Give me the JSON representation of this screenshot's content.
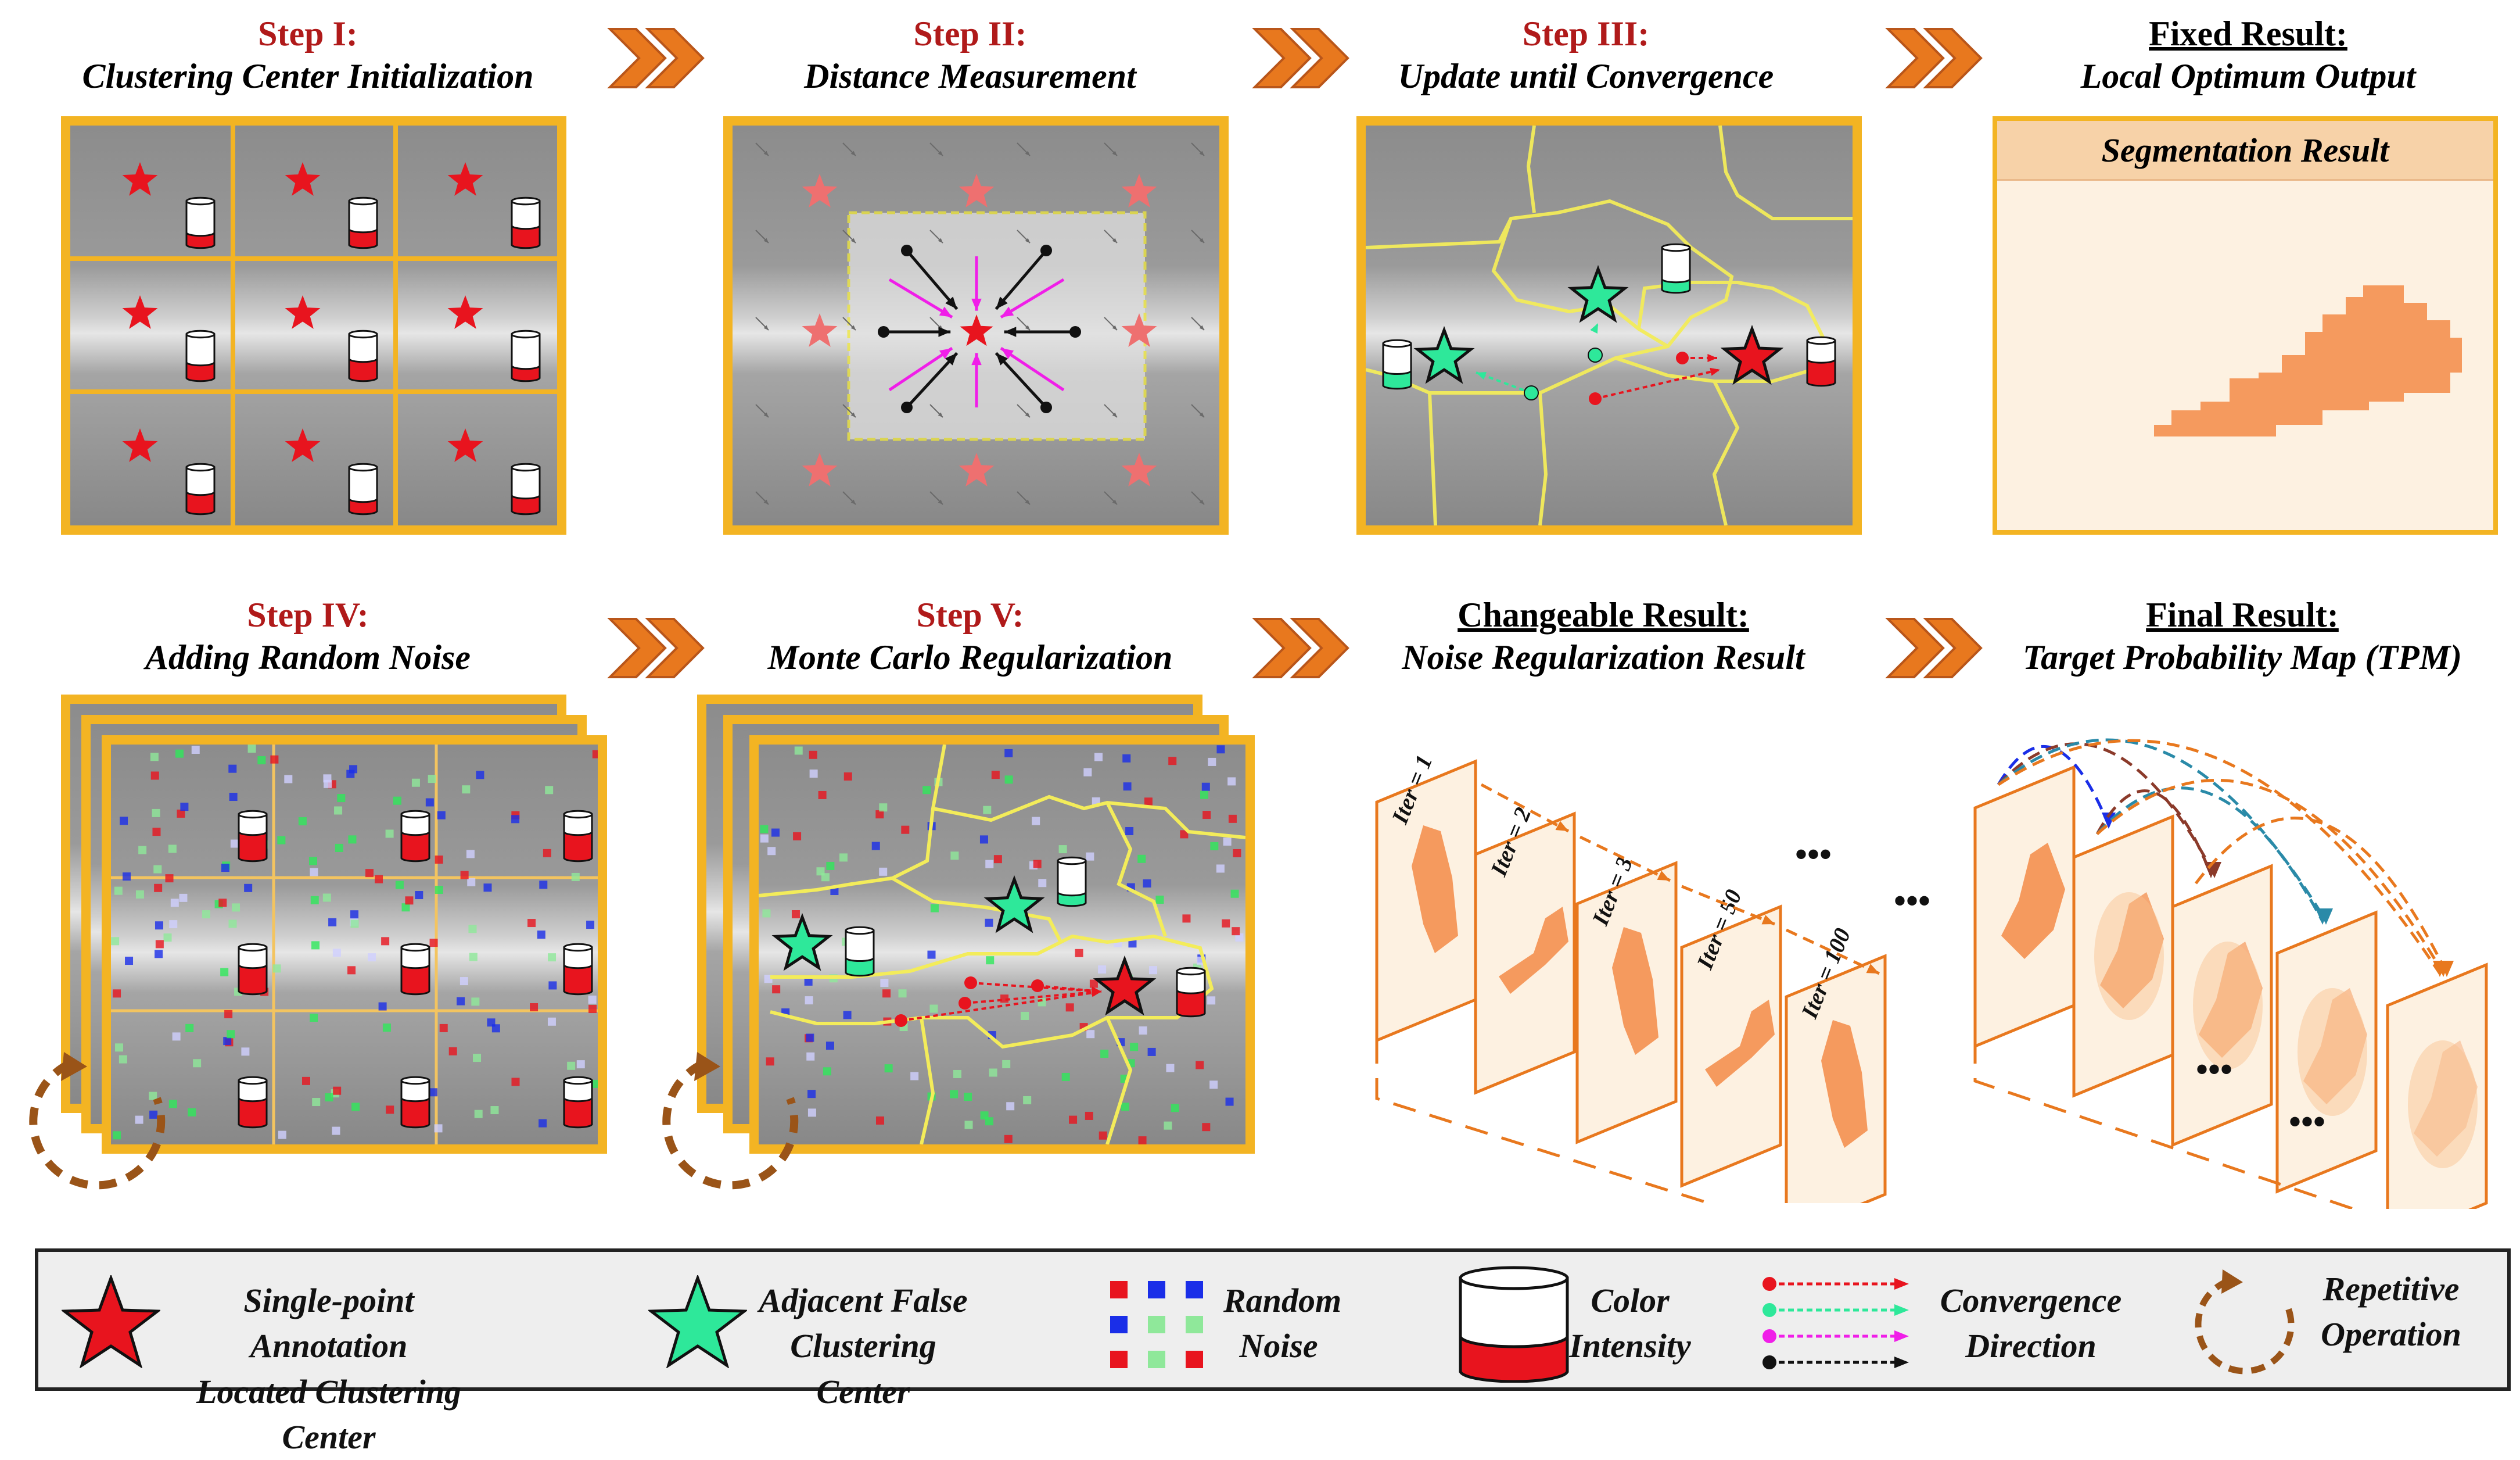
{
  "steps": {
    "s1": {
      "label": "Step I:",
      "subtitle": "Clustering Center Initialization"
    },
    "s2": {
      "label": "Step II:",
      "subtitle": "Distance Measurement"
    },
    "s3": {
      "label": "Step III:",
      "subtitle": "Update until Convergence"
    },
    "s4": {
      "label": "Fixed Result:",
      "subtitle": "Local Optimum Output"
    },
    "s5": {
      "label": "Step IV:",
      "subtitle": "Adding Random Noise"
    },
    "s6": {
      "label": "Step V:",
      "subtitle": "Monte Carlo Regularization"
    },
    "s7": {
      "label": "Changeable Result:",
      "subtitle": "Noise Regularization Result"
    },
    "s8": {
      "label": "Final Result:",
      "subtitle": "Target Probability Map (TPM)"
    }
  },
  "segmentation_label": "Segmentation Result",
  "iterations": [
    "Iter = 1",
    "Iter = 2",
    "Iter = 3",
    "Iter = 50",
    "Iter = 100"
  ],
  "ellipsis": "•••",
  "legend": {
    "star_red_line1": "Single-point  Annotation",
    "star_red_line2": "Located Clustering Center",
    "star_green_line1": "Adjacent False",
    "star_green_line2": "Clustering Center",
    "noise_line1": "Random",
    "noise_line2": "Noise",
    "intensity_line1": "Color",
    "intensity_line2": "Intensity",
    "convergence_line1": "Convergence",
    "convergence_line2": "Direction",
    "repetitive_line1": "Repetitive",
    "repetitive_line2": "Operation"
  },
  "colors": {
    "frame": "#f3b423",
    "step_title": "#b01a1a",
    "star_red": "#e8141e",
    "star_green": "#2ee89a",
    "chevron": "#e8781e",
    "segmentation": "#f59a5e",
    "loop_arrow": "#9a5418"
  },
  "icons": [
    "chevron-arrow-icon",
    "star-icon",
    "cylinder-icon",
    "loop-arrow-icon"
  ]
}
